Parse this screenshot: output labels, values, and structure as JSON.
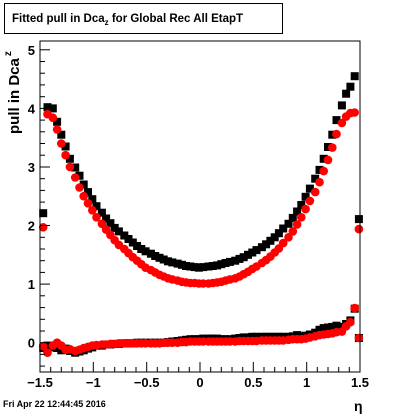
{
  "title": {
    "prefix": "Fitted pull in Dca",
    "subscript": "z",
    "suffix": " for Global Rec All EtapT"
  },
  "footer": "Fri Apr 22 12:44:45 2016",
  "chart_data": {
    "type": "scatter",
    "xlabel": "η",
    "ylabel": "pull in Dca",
    "ylabel_subscript": "z",
    "xlim": [
      -1.5,
      1.5
    ],
    "ylim": [
      -0.5,
      5.15
    ],
    "x_ticks": [
      "−1.5",
      "−1",
      "−0.5",
      "0",
      "0.5",
      "1",
      "1.5"
    ],
    "x_tick_values": [
      -1.5,
      -1,
      -0.5,
      0,
      0.5,
      1,
      1.5
    ],
    "y_ticks": [
      "0",
      "1",
      "2",
      "3",
      "4",
      "5"
    ],
    "y_tick_values": [
      0,
      1,
      2,
      3,
      4,
      5
    ],
    "grid": false,
    "series": [
      {
        "color": "#000000",
        "marker": "square",
        "points": [
          [
            -1.47,
            2.21
          ],
          [
            -1.47,
            -0.09
          ],
          [
            -1.43,
            4.02
          ],
          [
            -1.43,
            -0.05
          ],
          [
            -1.38,
            4.0
          ],
          [
            -1.38,
            -0.08
          ],
          [
            -1.34,
            3.77
          ],
          [
            -1.34,
            -0.09
          ],
          [
            -1.3,
            3.55
          ],
          [
            -1.3,
            -0.13
          ],
          [
            -1.26,
            3.35
          ],
          [
            -1.26,
            -0.1
          ],
          [
            -1.22,
            3.14
          ],
          [
            -1.22,
            -0.14
          ],
          [
            -1.17,
            2.99
          ],
          [
            -1.17,
            -0.17
          ],
          [
            -1.13,
            2.85
          ],
          [
            -1.13,
            -0.15
          ],
          [
            -1.09,
            2.7
          ],
          [
            -1.09,
            -0.13
          ],
          [
            -1.05,
            2.57
          ],
          [
            -1.05,
            -0.1
          ],
          [
            -1.01,
            2.45
          ],
          [
            -1.01,
            -0.08
          ],
          [
            -0.97,
            2.33
          ],
          [
            -0.97,
            -0.05
          ],
          [
            -0.92,
            2.22
          ],
          [
            -0.92,
            -0.05
          ],
          [
            -0.88,
            2.12
          ],
          [
            -0.88,
            -0.03
          ],
          [
            -0.84,
            2.04
          ],
          [
            -0.84,
            -0.03
          ],
          [
            -0.8,
            1.96
          ],
          [
            -0.8,
            -0.02
          ],
          [
            -0.76,
            1.9
          ],
          [
            -0.76,
            -0.02
          ],
          [
            -0.71,
            1.83
          ],
          [
            -0.71,
            -0.01
          ],
          [
            -0.67,
            1.77
          ],
          [
            -0.67,
            -0.01
          ],
          [
            -0.63,
            1.71
          ],
          [
            -0.63,
            -0.01
          ],
          [
            -0.59,
            1.65
          ],
          [
            -0.59,
            0.0
          ],
          [
            -0.55,
            1.6
          ],
          [
            -0.55,
            0.0
          ],
          [
            -0.51,
            1.56
          ],
          [
            -0.51,
            0.0
          ],
          [
            -0.46,
            1.52
          ],
          [
            -0.46,
            0.0
          ],
          [
            -0.42,
            1.48
          ],
          [
            -0.42,
            0.0
          ],
          [
            -0.38,
            1.45
          ],
          [
            -0.38,
            0.0
          ],
          [
            -0.34,
            1.42
          ],
          [
            -0.34,
            0.0
          ],
          [
            -0.3,
            1.39
          ],
          [
            -0.3,
            0.01
          ],
          [
            -0.26,
            1.37
          ],
          [
            -0.26,
            0.02
          ],
          [
            -0.21,
            1.35
          ],
          [
            -0.21,
            0.03
          ],
          [
            -0.17,
            1.33
          ],
          [
            -0.17,
            0.04
          ],
          [
            -0.13,
            1.31
          ],
          [
            -0.13,
            0.05
          ],
          [
            -0.09,
            1.3
          ],
          [
            -0.09,
            0.06
          ],
          [
            -0.05,
            1.29
          ],
          [
            -0.05,
            0.06
          ],
          [
            -0.01,
            1.28
          ],
          [
            -0.01,
            0.06
          ],
          [
            0.03,
            1.29
          ],
          [
            0.03,
            0.07
          ],
          [
            0.08,
            1.3
          ],
          [
            0.08,
            0.07
          ],
          [
            0.12,
            1.31
          ],
          [
            0.12,
            0.07
          ],
          [
            0.16,
            1.32
          ],
          [
            0.16,
            0.07
          ],
          [
            0.2,
            1.34
          ],
          [
            0.2,
            0.06
          ],
          [
            0.24,
            1.36
          ],
          [
            0.24,
            0.06
          ],
          [
            0.28,
            1.38
          ],
          [
            0.28,
            0.06
          ],
          [
            0.33,
            1.4
          ],
          [
            0.33,
            0.07
          ],
          [
            0.37,
            1.43
          ],
          [
            0.37,
            0.08
          ],
          [
            0.41,
            1.46
          ],
          [
            0.41,
            0.09
          ],
          [
            0.45,
            1.5
          ],
          [
            0.45,
            0.09
          ],
          [
            0.49,
            1.54
          ],
          [
            0.49,
            0.1
          ],
          [
            0.53,
            1.58
          ],
          [
            0.53,
            0.1
          ],
          [
            0.58,
            1.63
          ],
          [
            0.58,
            0.1
          ],
          [
            0.62,
            1.68
          ],
          [
            0.62,
            0.1
          ],
          [
            0.66,
            1.74
          ],
          [
            0.66,
            0.1
          ],
          [
            0.7,
            1.8
          ],
          [
            0.7,
            0.1
          ],
          [
            0.74,
            1.87
          ],
          [
            0.74,
            0.1
          ],
          [
            0.78,
            1.95
          ],
          [
            0.78,
            0.1
          ],
          [
            0.83,
            2.03
          ],
          [
            0.83,
            0.1
          ],
          [
            0.87,
            2.13
          ],
          [
            0.87,
            0.11
          ],
          [
            0.91,
            2.24
          ],
          [
            0.91,
            0.13
          ],
          [
            0.95,
            2.35
          ],
          [
            0.95,
            0.11
          ],
          [
            0.99,
            2.49
          ],
          [
            0.99,
            0.12
          ],
          [
            1.03,
            2.63
          ],
          [
            1.03,
            0.14
          ],
          [
            1.08,
            2.8
          ],
          [
            1.08,
            0.17
          ],
          [
            1.12,
            2.95
          ],
          [
            1.12,
            0.22
          ],
          [
            1.16,
            3.14
          ],
          [
            1.16,
            0.25
          ],
          [
            1.2,
            3.34
          ],
          [
            1.2,
            0.26
          ],
          [
            1.24,
            3.55
          ],
          [
            1.24,
            0.27
          ],
          [
            1.28,
            3.8
          ],
          [
            1.28,
            0.29
          ],
          [
            1.33,
            4.05
          ],
          [
            1.33,
            0.27
          ],
          [
            1.37,
            4.25
          ],
          [
            1.37,
            0.32
          ],
          [
            1.41,
            4.37
          ],
          [
            1.41,
            0.38
          ],
          [
            1.45,
            4.55
          ],
          [
            1.45,
            0.58
          ],
          [
            1.49,
            2.11
          ],
          [
            1.49,
            0.08
          ]
        ]
      },
      {
        "color": "#ff0000",
        "marker": "circle",
        "points": [
          [
            -1.47,
            1.97
          ],
          [
            -1.47,
            -0.06
          ],
          [
            -1.43,
            3.9
          ],
          [
            -1.43,
            -0.17
          ],
          [
            -1.38,
            3.84
          ],
          [
            -1.38,
            -0.05
          ],
          [
            -1.34,
            3.64
          ],
          [
            -1.34,
            0.0
          ],
          [
            -1.3,
            3.4
          ],
          [
            -1.3,
            -0.05
          ],
          [
            -1.26,
            3.2
          ],
          [
            -1.26,
            -0.12
          ],
          [
            -1.22,
            3.0
          ],
          [
            -1.22,
            -0.11
          ],
          [
            -1.17,
            2.82
          ],
          [
            -1.17,
            -0.14
          ],
          [
            -1.13,
            2.65
          ],
          [
            -1.13,
            -0.12
          ],
          [
            -1.09,
            2.5
          ],
          [
            -1.09,
            -0.09
          ],
          [
            -1.05,
            2.38
          ],
          [
            -1.05,
            -0.07
          ],
          [
            -1.01,
            2.26
          ],
          [
            -1.01,
            -0.05
          ],
          [
            -0.97,
            2.14
          ],
          [
            -0.97,
            -0.04
          ],
          [
            -0.92,
            2.03
          ],
          [
            -0.92,
            -0.03
          ],
          [
            -0.88,
            1.93
          ],
          [
            -0.88,
            -0.03
          ],
          [
            -0.84,
            1.84
          ],
          [
            -0.84,
            -0.02
          ],
          [
            -0.8,
            1.75
          ],
          [
            -0.8,
            -0.02
          ],
          [
            -0.76,
            1.67
          ],
          [
            -0.76,
            -0.01
          ],
          [
            -0.71,
            1.6
          ],
          [
            -0.71,
            -0.01
          ],
          [
            -0.67,
            1.53
          ],
          [
            -0.67,
            -0.01
          ],
          [
            -0.63,
            1.46
          ],
          [
            -0.63,
            -0.01
          ],
          [
            -0.59,
            1.4
          ],
          [
            -0.59,
            -0.01
          ],
          [
            -0.55,
            1.34
          ],
          [
            -0.55,
            -0.01
          ],
          [
            -0.51,
            1.28
          ],
          [
            -0.51,
            -0.01
          ],
          [
            -0.46,
            1.24
          ],
          [
            -0.46,
            -0.01
          ],
          [
            -0.42,
            1.2
          ],
          [
            -0.42,
            -0.01
          ],
          [
            -0.38,
            1.16
          ],
          [
            -0.38,
            -0.01
          ],
          [
            -0.34,
            1.13
          ],
          [
            -0.34,
            0.0
          ],
          [
            -0.3,
            1.1
          ],
          [
            -0.3,
            0.0
          ],
          [
            -0.26,
            1.08
          ],
          [
            -0.26,
            0.0
          ],
          [
            -0.21,
            1.06
          ],
          [
            -0.21,
            0.0
          ],
          [
            -0.17,
            1.04
          ],
          [
            -0.17,
            0.01
          ],
          [
            -0.13,
            1.03
          ],
          [
            -0.13,
            0.01
          ],
          [
            -0.09,
            1.02
          ],
          [
            -0.09,
            0.02
          ],
          [
            -0.05,
            1.02
          ],
          [
            -0.05,
            0.02
          ],
          [
            -0.01,
            1.01
          ],
          [
            -0.01,
            0.02
          ],
          [
            0.03,
            1.01
          ],
          [
            0.03,
            0.02
          ],
          [
            0.08,
            1.01
          ],
          [
            0.08,
            0.02
          ],
          [
            0.12,
            1.02
          ],
          [
            0.12,
            0.02
          ],
          [
            0.16,
            1.03
          ],
          [
            0.16,
            0.02
          ],
          [
            0.2,
            1.04
          ],
          [
            0.2,
            0.02
          ],
          [
            0.24,
            1.06
          ],
          [
            0.24,
            0.02
          ],
          [
            0.28,
            1.08
          ],
          [
            0.28,
            0.02
          ],
          [
            0.33,
            1.1
          ],
          [
            0.33,
            0.02
          ],
          [
            0.37,
            1.13
          ],
          [
            0.37,
            0.03
          ],
          [
            0.41,
            1.17
          ],
          [
            0.41,
            0.03
          ],
          [
            0.45,
            1.21
          ],
          [
            0.45,
            0.03
          ],
          [
            0.49,
            1.26
          ],
          [
            0.49,
            0.03
          ],
          [
            0.53,
            1.3
          ],
          [
            0.53,
            0.03
          ],
          [
            0.58,
            1.36
          ],
          [
            0.58,
            0.04
          ],
          [
            0.62,
            1.41
          ],
          [
            0.62,
            0.04
          ],
          [
            0.66,
            1.47
          ],
          [
            0.66,
            0.04
          ],
          [
            0.7,
            1.54
          ],
          [
            0.7,
            0.04
          ],
          [
            0.74,
            1.61
          ],
          [
            0.74,
            0.04
          ],
          [
            0.78,
            1.7
          ],
          [
            0.78,
            0.04
          ],
          [
            0.83,
            1.8
          ],
          [
            0.83,
            0.05
          ],
          [
            0.87,
            1.9
          ],
          [
            0.87,
            0.06
          ],
          [
            0.91,
            2.02
          ],
          [
            0.91,
            0.06
          ],
          [
            0.95,
            2.14
          ],
          [
            0.95,
            0.06
          ],
          [
            0.99,
            2.28
          ],
          [
            0.99,
            0.07
          ],
          [
            1.03,
            2.42
          ],
          [
            1.03,
            0.09
          ],
          [
            1.08,
            2.57
          ],
          [
            1.08,
            0.11
          ],
          [
            1.12,
            2.74
          ],
          [
            1.12,
            0.13
          ],
          [
            1.16,
            2.93
          ],
          [
            1.16,
            0.14
          ],
          [
            1.2,
            3.12
          ],
          [
            1.2,
            0.15
          ],
          [
            1.24,
            3.33
          ],
          [
            1.24,
            0.16
          ],
          [
            1.28,
            3.56
          ],
          [
            1.28,
            0.18
          ],
          [
            1.33,
            3.75
          ],
          [
            1.33,
            0.19
          ],
          [
            1.37,
            3.86
          ],
          [
            1.37,
            0.28
          ],
          [
            1.41,
            3.92
          ],
          [
            1.41,
            0.35
          ],
          [
            1.45,
            3.93
          ],
          [
            1.45,
            0.59
          ],
          [
            1.49,
            1.94
          ],
          [
            1.49,
            0.08
          ]
        ]
      }
    ]
  }
}
